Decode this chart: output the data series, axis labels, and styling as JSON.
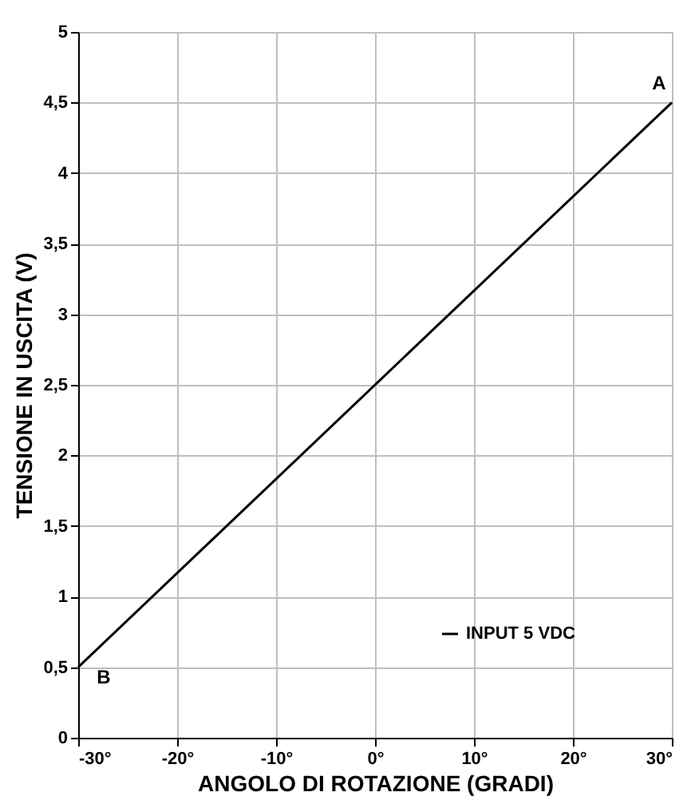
{
  "chart_data": {
    "type": "line",
    "xlabel": "ANGOLO DI ROTAZIONE (GRADI)",
    "ylabel": "TENSIONE IN USCITA (V)",
    "x": [
      -30,
      30
    ],
    "series": [
      {
        "name": "INPUT 5 VDC",
        "color": "#000000",
        "values": [
          0.5,
          4.5
        ]
      }
    ],
    "xlim": [
      -30,
      30
    ],
    "xticks": [
      {
        "value": -30,
        "label": "-30°"
      },
      {
        "value": -20,
        "label": "-20°"
      },
      {
        "value": -10,
        "label": "-10°"
      },
      {
        "value": 0,
        "label": "0°"
      },
      {
        "value": 10,
        "label": "10°"
      },
      {
        "value": 20,
        "label": "20°"
      },
      {
        "value": 30,
        "label": "30°"
      }
    ],
    "ylim": [
      0,
      5
    ],
    "yticks": [
      0,
      {
        "value": 0.5,
        "label": "0,5"
      },
      1,
      {
        "value": 1.5,
        "label": "1,5"
      },
      2,
      {
        "value": 2.5,
        "label": "2,5"
      },
      3,
      {
        "value": 3.5,
        "label": "3,5"
      },
      4,
      {
        "value": 4.5,
        "label": "4,5"
      },
      5
    ],
    "annotations": [
      {
        "text": "A",
        "x": 30,
        "y": 4.5
      },
      {
        "text": "B",
        "x": -30,
        "y": 0.5
      }
    ],
    "grid": true,
    "legend": "bottom right",
    "marker": "none",
    "line_style": "solid"
  }
}
